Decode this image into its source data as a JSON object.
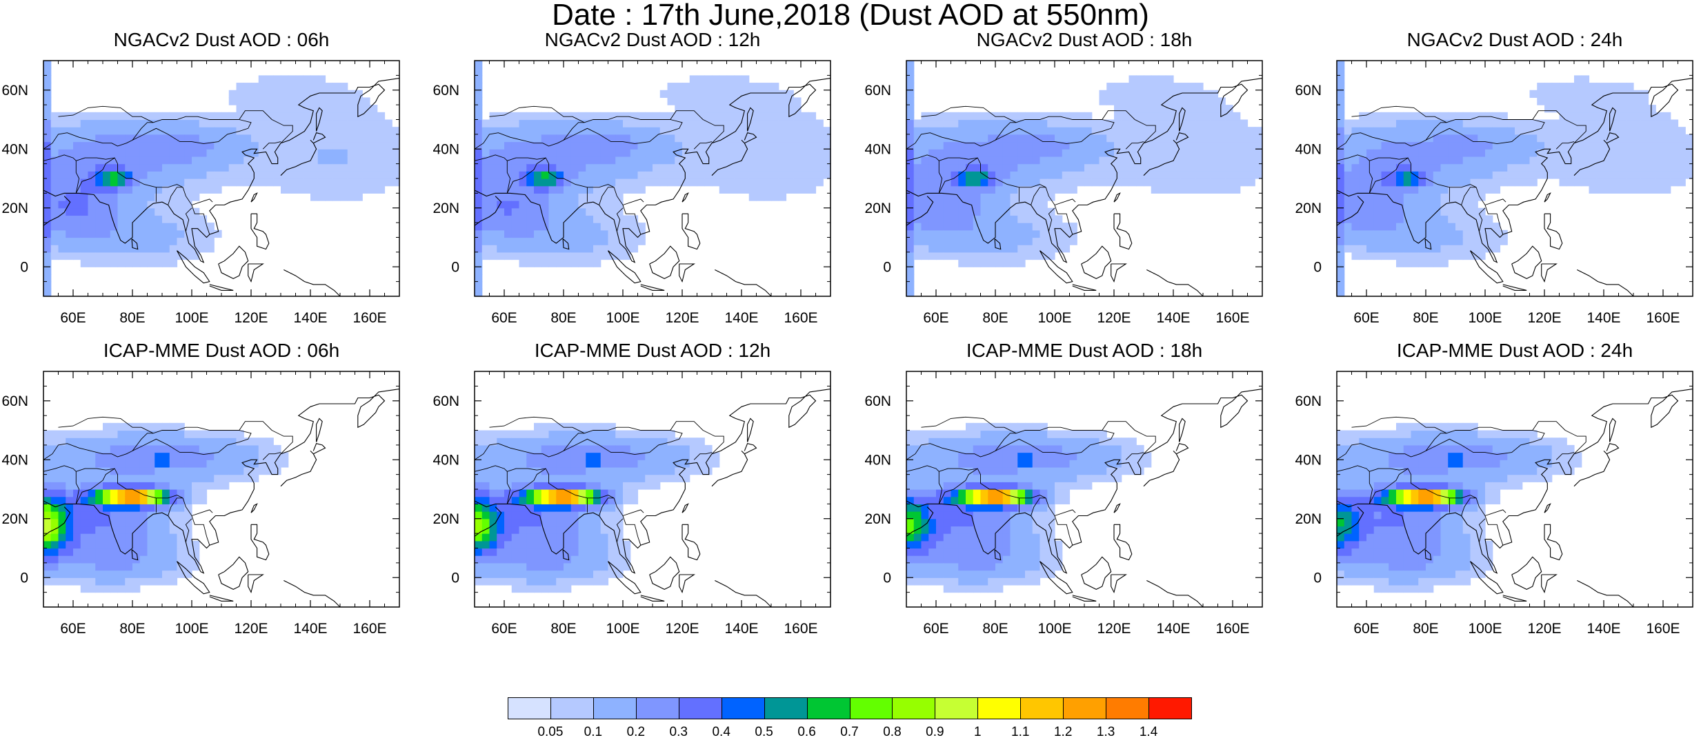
{
  "figure": {
    "title": "Date : 17th June,2018 (Dust AOD at 550nm)"
  },
  "rows": [
    {
      "model": "NGACv2",
      "panels": [
        {
          "title": "NGACv2 Dust AOD : 06h",
          "hour": "06h"
        },
        {
          "title": "NGACv2 Dust AOD : 12h",
          "hour": "12h"
        },
        {
          "title": "NGACv2 Dust AOD : 18h",
          "hour": "18h"
        },
        {
          "title": "NGACv2 Dust AOD : 24h",
          "hour": "24h"
        }
      ]
    },
    {
      "model": "ICAP-MME",
      "panels": [
        {
          "title": "ICAP-MME Dust AOD : 06h",
          "hour": "06h"
        },
        {
          "title": "ICAP-MME Dust AOD : 12h",
          "hour": "12h"
        },
        {
          "title": "ICAP-MME Dust AOD : 18h",
          "hour": "18h"
        },
        {
          "title": "ICAP-MME Dust AOD : 24h",
          "hour": "24h"
        }
      ]
    }
  ],
  "map": {
    "lon_range": [
      50,
      170
    ],
    "lat_range": [
      -10,
      70
    ],
    "lon_ticks": [
      60,
      80,
      100,
      120,
      140,
      160
    ],
    "lon_labels": [
      "60E",
      "80E",
      "100E",
      "120E",
      "140E",
      "160E"
    ],
    "lat_ticks": [
      0,
      20,
      40,
      60
    ],
    "lat_labels": [
      "0",
      "20N",
      "40N",
      "60N"
    ]
  },
  "colorbar": {
    "labels": [
      "0.05",
      "0.1",
      "0.2",
      "0.3",
      "0.4",
      "0.5",
      "0.6",
      "0.7",
      "0.8",
      "0.9",
      "1",
      "1.1",
      "1.2",
      "1.3",
      "1.4"
    ],
    "colors": [
      "#ffffff",
      "#d6e2ff",
      "#b5c9ff",
      "#8eb2ff",
      "#7f96ff",
      "#6370ff",
      "#0063ff",
      "#009696",
      "#00c633",
      "#63ff00",
      "#96ff00",
      "#c6ff33",
      "#ffff00",
      "#ffc600",
      "#ffa000",
      "#ff7c00",
      "#ff1900"
    ]
  }
}
